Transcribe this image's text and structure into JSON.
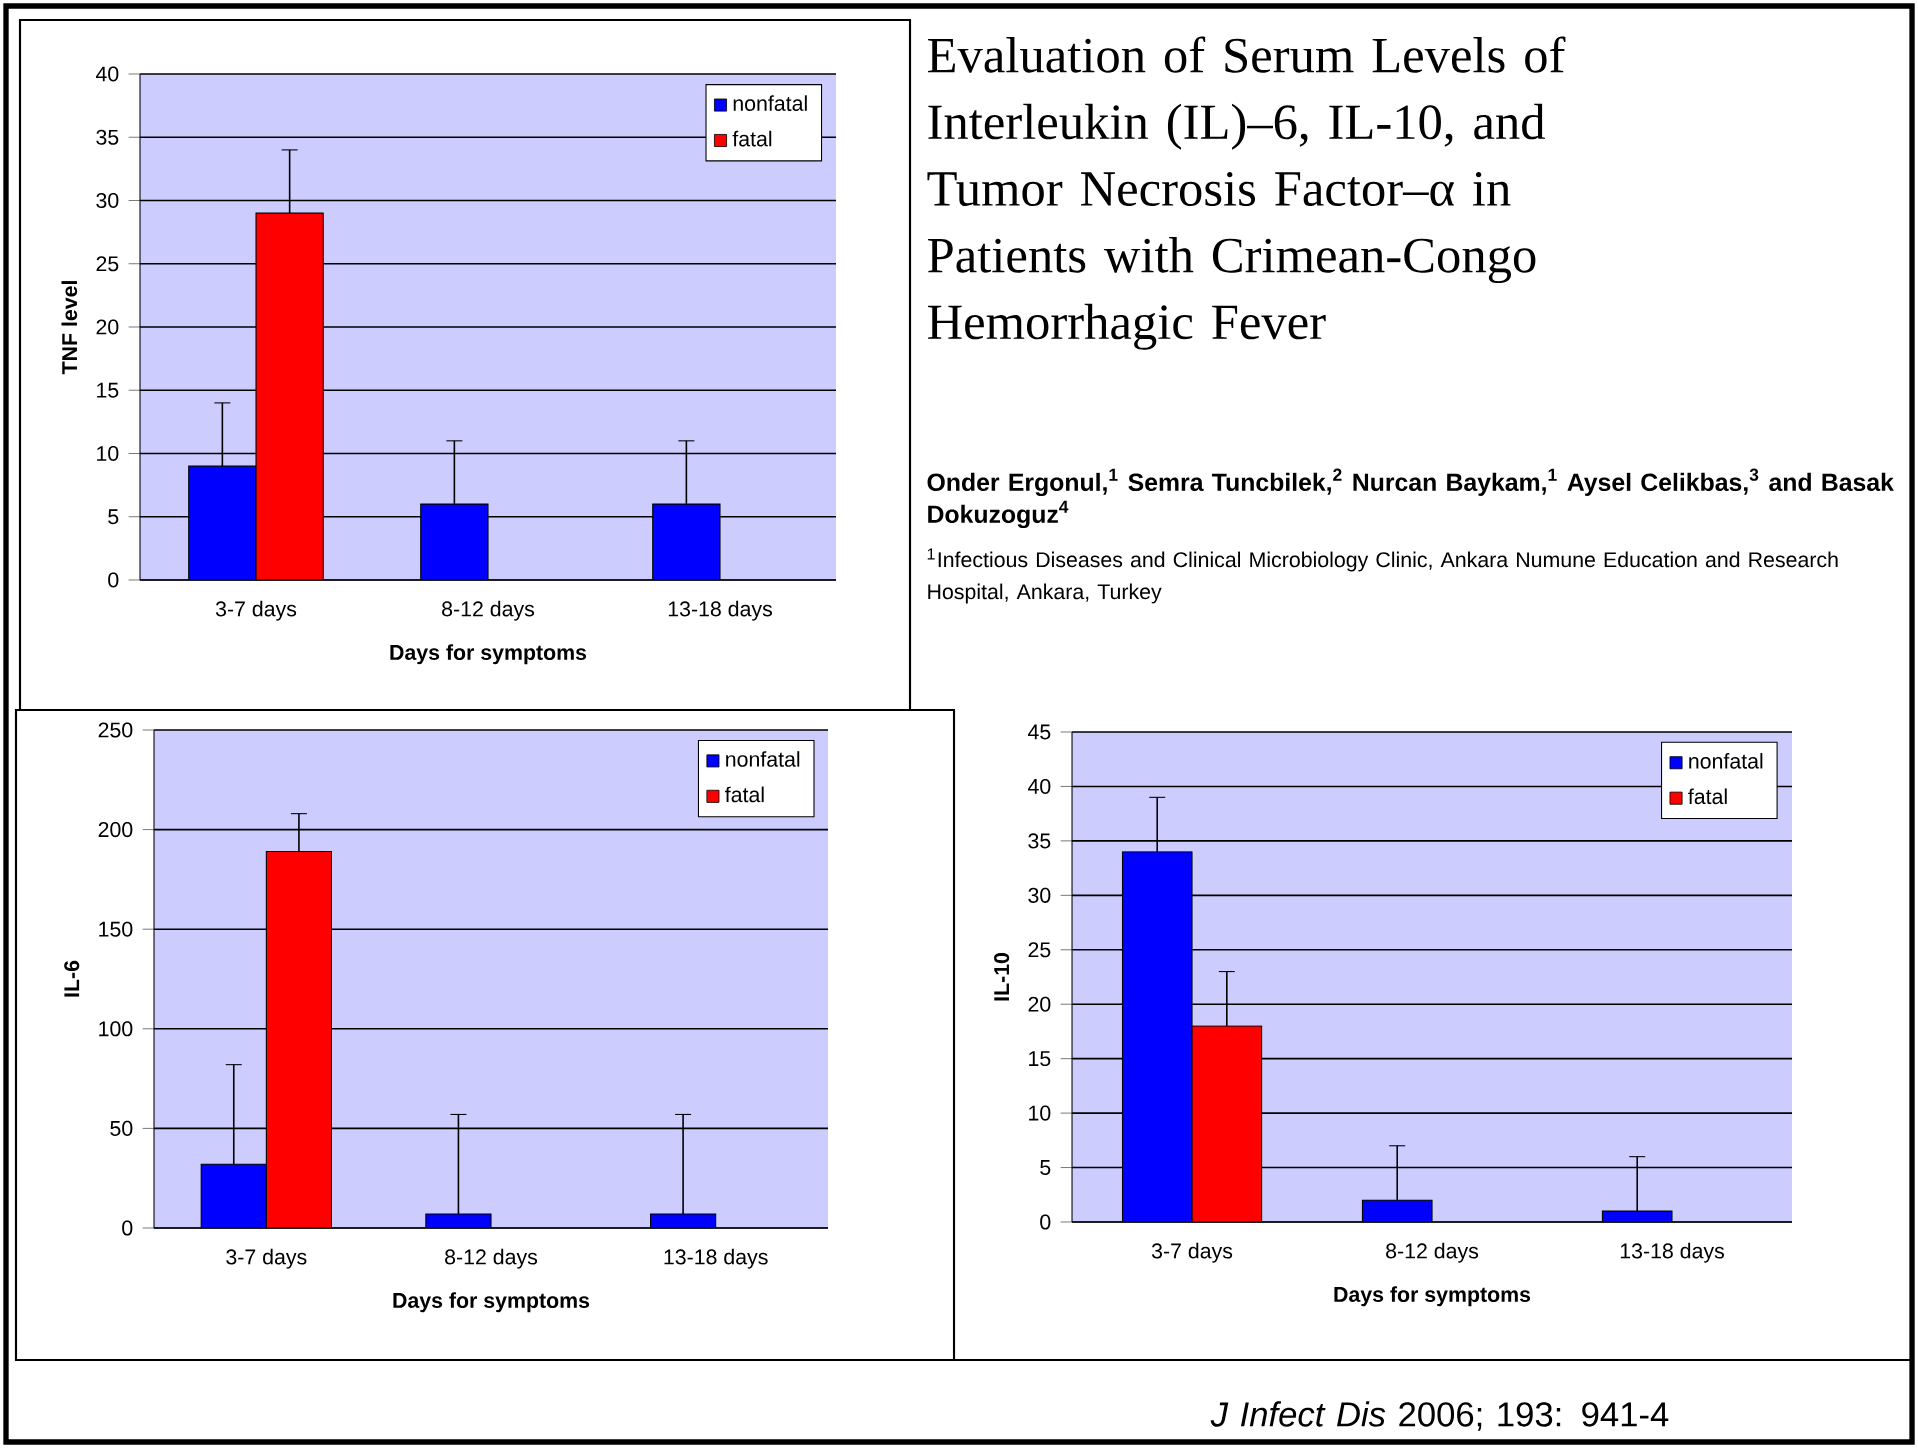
{
  "chart_data": [
    {
      "type": "bar",
      "xlabel": "Days for symptoms",
      "ylabel": "TNF level",
      "categories": [
        "3-7 days",
        "8-12 days",
        "13-18 days"
      ],
      "series": [
        {
          "name": "nonfatal",
          "color": "#0000ff",
          "values": [
            9,
            6,
            6
          ],
          "errors": [
            [
              9,
              14
            ],
            [
              6,
              11
            ],
            [
              6,
              11
            ]
          ]
        },
        {
          "name": "fatal",
          "color": "#ff0000",
          "values": [
            29,
            null,
            null
          ],
          "errors": [
            [
              29,
              34
            ],
            null,
            null
          ]
        }
      ],
      "ylim": [
        0,
        40
      ],
      "yticks": [
        0,
        5,
        10,
        15,
        20,
        25,
        30,
        35,
        40
      ],
      "grid": "y",
      "legend": "top right"
    },
    {
      "type": "bar",
      "xlabel": "Days for symptoms",
      "ylabel": "IL-6",
      "categories": [
        "3-7 days",
        "8-12 days",
        "13-18 days"
      ],
      "series": [
        {
          "name": "nonfatal",
          "color": "#0000ff",
          "values": [
            32,
            7,
            7
          ],
          "errors": [
            [
              32,
              82
            ],
            [
              7,
              57
            ],
            [
              7,
              57
            ]
          ]
        },
        {
          "name": "fatal",
          "color": "#ff0000",
          "values": [
            189,
            null,
            null
          ],
          "errors": [
            [
              189,
              208
            ],
            null,
            null
          ]
        }
      ],
      "ylim": [
        0,
        250
      ],
      "yticks": [
        0,
        50,
        100,
        150,
        200,
        250
      ],
      "grid": "y",
      "legend": "top right"
    },
    {
      "type": "bar",
      "xlabel": "Days for symptoms",
      "ylabel": "IL-10",
      "categories": [
        "3-7 days",
        "8-12 days",
        "13-18 days"
      ],
      "series": [
        {
          "name": "nonfatal",
          "color": "#0000ff",
          "values": [
            34,
            2,
            1
          ],
          "errors": [
            [
              34,
              39
            ],
            [
              2,
              7
            ],
            [
              1,
              6
            ]
          ]
        },
        {
          "name": "fatal",
          "color": "#ff0000",
          "values": [
            18,
            null,
            null
          ],
          "errors": [
            [
              18,
              23
            ],
            null,
            null
          ]
        }
      ],
      "ylim": [
        0,
        45
      ],
      "yticks": [
        0,
        5,
        10,
        15,
        20,
        25,
        30,
        35,
        40,
        45
      ],
      "grid": "y",
      "legend": "top right"
    },
    {
      "type": "other",
      "title": "Evaluation of Serum Levels of Interleukin (IL)–6, IL-10, and Tumor Necrosis Factor–α in Patients with Crimean-Congo Hemorrhagic Fever",
      "subtitle": "Onder Ergonul,$^{1}$ Semra Tuncbilek,$^{2}$ Nurcan Baykam,$^{1}$ Aysel Celikbas,$^{3}$ and Basak Dokuzoguz$^{4}$",
      "annotations": [
        "$^{1}$Infectious Diseases and Clinical Microbiology Clinic, Ankara Numune Education and Research Hospital, Ankara, Turkey",
        "*J Infect Dis* 2006; 193: 941-4"
      ]
    }
  ]
}
